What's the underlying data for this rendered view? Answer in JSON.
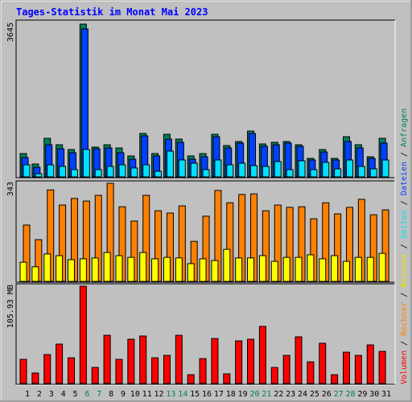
{
  "chart_data": [
    {
      "type": "bar",
      "title": "Tages-Statistik im Monat Mai 2023",
      "legend_separator": " / ",
      "ylim": [
        0,
        3645
      ],
      "yticks": [
        3645
      ],
      "series": [
        {
          "name": "Anfragen",
          "color": "#00805c",
          "values": [
            556,
            307,
            920,
            767,
            652,
            3645,
            710,
            767,
            690,
            499,
            1036,
            556,
            1017,
            901,
            499,
            556,
            1017,
            748,
            844,
            1093,
            786,
            825,
            844,
            767,
            441,
            652,
            441,
            959,
            767,
            480,
            920
          ]
        },
        {
          "name": "Dateien",
          "color": "#0040ff",
          "values": [
            460,
            230,
            767,
            671,
            576,
            3530,
            671,
            690,
            576,
            422,
            978,
            499,
            901,
            825,
            422,
            480,
            959,
            690,
            806,
            1036,
            729,
            767,
            806,
            729,
            403,
            595,
            403,
            844,
            690,
            441,
            806
          ]
        },
        {
          "name": "Seiten",
          "color": "#00e0ff",
          "values": [
            288,
            77,
            288,
            250,
            173,
            653,
            173,
            250,
            288,
            211,
            288,
            134,
            614,
            403,
            326,
            173,
            403,
            288,
            326,
            269,
            250,
            365,
            173,
            384,
            173,
            346,
            192,
            403,
            250,
            192,
            403
          ]
        }
      ]
    },
    {
      "type": "bar",
      "ylim": [
        0,
        343
      ],
      "yticks": [
        343
      ],
      "series": [
        {
          "name": "Rechner",
          "color": "#ff8000",
          "values": [
            197,
            146,
            320,
            267,
            290,
            281,
            301,
            343,
            261,
            211,
            301,
            247,
            239,
            264,
            140,
            228,
            318,
            275,
            304,
            306,
            247,
            267,
            259,
            261,
            219,
            275,
            236,
            259,
            287,
            233,
            250
          ]
        },
        {
          "name": "Besuche",
          "color": "#ffff00",
          "values": [
            67,
            51,
            96,
            90,
            76,
            79,
            82,
            101,
            90,
            84,
            101,
            79,
            84,
            82,
            62,
            79,
            73,
            112,
            82,
            82,
            90,
            70,
            84,
            84,
            93,
            79,
            90,
            70,
            84,
            84,
            98
          ]
        }
      ]
    },
    {
      "type": "bar",
      "ylim": [
        0,
        105.93
      ],
      "yticks": [
        {
          "value": 105.93,
          "label": "105.93 MB"
        }
      ],
      "categories": [
        "1",
        "2",
        "3",
        "4",
        "5",
        "6",
        "7",
        "8",
        "9",
        "10",
        "11",
        "12",
        "13",
        "14",
        "15",
        "16",
        "17",
        "18",
        "19",
        "20",
        "21",
        "22",
        "23",
        "24",
        "25",
        "26",
        "27",
        "28",
        "29",
        "30",
        "31"
      ],
      "weekend_days": [
        6,
        7,
        13,
        14,
        20,
        21,
        27,
        28
      ],
      "weekend_label_color": "#00805c",
      "series": [
        {
          "name": "Volumen",
          "color": "#ff0000",
          "values": [
            26.3,
            11.4,
            31.5,
            42.9,
            28.0,
            105.93,
            17.5,
            52.5,
            26.3,
            48.2,
            51.7,
            28.0,
            30.6,
            52.5,
            9.6,
            27.1,
            49.0,
            10.5,
            46.4,
            48.2,
            62.2,
            17.5,
            30.6,
            50.8,
            23.6,
            43.8,
            9.6,
            34.1,
            30.6,
            42.0,
            35.0
          ]
        }
      ]
    }
  ]
}
